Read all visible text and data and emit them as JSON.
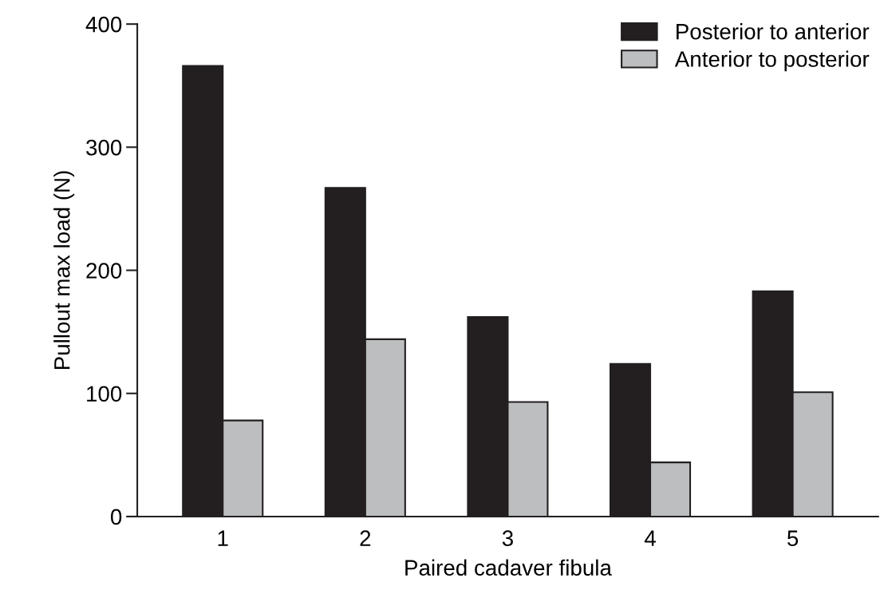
{
  "chart_data": {
    "type": "bar",
    "xlabel": "Paired cadaver fibula",
    "ylabel": "Pullout max load (N)",
    "categories": [
      "1",
      "2",
      "3",
      "4",
      "5"
    ],
    "series": [
      {
        "name": "Posterior to anterior",
        "color": "#231f20",
        "values": [
          366,
          267,
          162,
          124,
          183
        ]
      },
      {
        "name": "Anterior to posterior",
        "color": "#bcbec0",
        "values": [
          78,
          144,
          93,
          44,
          101
        ]
      }
    ],
    "ylim": [
      0,
      400
    ],
    "yticks": [
      0,
      100,
      200,
      300,
      400
    ],
    "grid": false,
    "legend": "top right"
  }
}
